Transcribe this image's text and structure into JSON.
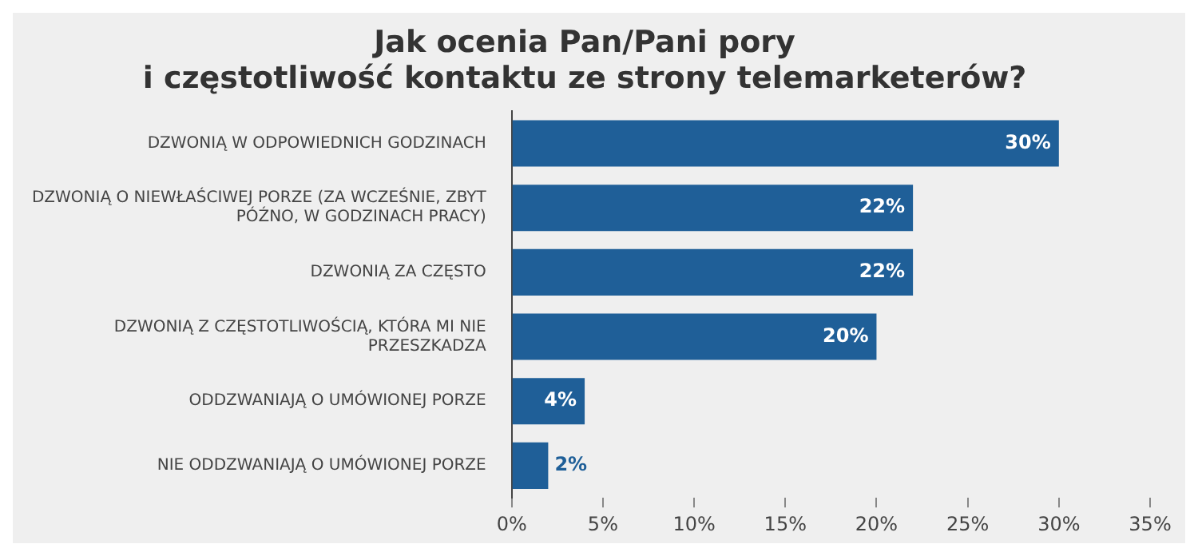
{
  "chart_data": {
    "type": "bar",
    "orientation": "horizontal",
    "title": "Jak ocenia Pan/Pani pory\ni częstotliwość kontaktu ze strony telemarketerów?",
    "categories": [
      "DZWONIĄ W ODPOWIEDNICH GODZINACH",
      "DZWONIĄ O NIEWŁAŚCIWEJ PORZE (ZA WCZEŚNIE, ZBYT PÓŹNO, W GODZINACH PRACY)",
      "DZWONIĄ ZA CZĘSTO",
      "DZWONIĄ Z CZĘSTOTLIWOŚCIĄ, KTÓRA MI NIE PRZESZKADZA",
      "ODDZWANIAJĄ O UMÓWIONEJ PORZE",
      "NIE ODDZWANIAJĄ O UMÓWIONEJ PORZE"
    ],
    "values": [
      30,
      22,
      22,
      20,
      4,
      2
    ],
    "value_labels": [
      "30%",
      "22%",
      "22%",
      "20%",
      "4%",
      "2%"
    ],
    "color": "#1f5f98",
    "xlim": [
      0,
      35
    ],
    "xticks": [
      {
        "value": 0,
        "label": "0%"
      },
      {
        "value": 5,
        "label": "5%"
      },
      {
        "value": 10,
        "label": "10%"
      },
      {
        "value": 15,
        "label": "15%"
      },
      {
        "value": 20,
        "label": "20%"
      },
      {
        "value": 25,
        "label": "25%"
      },
      {
        "value": 30,
        "label": "30%"
      },
      {
        "value": 35,
        "label": "35%"
      }
    ],
    "grid": false,
    "legend": false
  }
}
